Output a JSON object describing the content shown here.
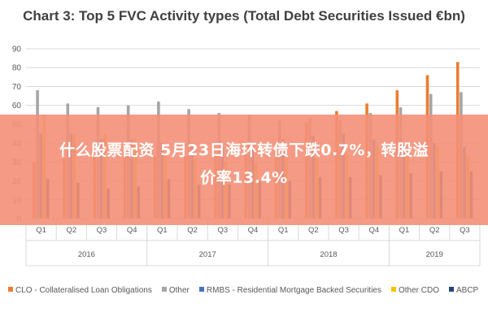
{
  "chart_data": {
    "type": "bar",
    "title": "Chart 3: Top 5 FVC Activity types (Total Debt Securities Issued €bn)",
    "yticks": [
      "0",
      "10",
      "20",
      "30",
      "40",
      "50",
      "60",
      "70",
      "80",
      "90"
    ],
    "ylim": [
      0,
      90
    ],
    "categories": [
      "Q1",
      "Q2",
      "Q3",
      "Q4",
      "Q1",
      "Q2",
      "Q3",
      "Q4",
      "Q1",
      "Q2",
      "Q3",
      "Q4",
      "Q1",
      "Q2",
      "Q3"
    ],
    "year_groups": [
      {
        "label": "2016",
        "count": 4
      },
      {
        "label": "2017",
        "count": 4
      },
      {
        "label": "2018",
        "count": 4
      },
      {
        "label": "2019",
        "count": 3
      }
    ],
    "grid": true,
    "legend_position": "bottom",
    "series": [
      {
        "name": "CLO - Collateralised Loan Obligations",
        "color": "#ED7D31",
        "values": [
          30,
          32,
          33,
          35,
          33,
          33,
          34,
          35,
          36,
          51,
          57,
          61,
          68,
          76,
          83
        ]
      },
      {
        "name": "Other",
        "color": "#A5A5A5",
        "values": [
          68,
          61,
          59,
          60,
          62,
          58,
          56,
          55,
          52,
          53,
          52,
          56,
          59,
          66,
          67
        ]
      },
      {
        "name": "RMBS - Residential Mortgage Backed Securities",
        "color": "#4472C4",
        "values": [
          45,
          45,
          42,
          42,
          40,
          40,
          38,
          38,
          42,
          44,
          45,
          42,
          40,
          40,
          38
        ]
      },
      {
        "name": "Other CDO",
        "color": "#FFC000",
        "values": [
          55,
          45,
          45,
          42,
          35,
          32,
          30,
          30,
          32,
          32,
          34,
          38,
          36,
          38,
          33
        ]
      },
      {
        "name": "ABCP",
        "color": "#264478",
        "values": [
          21,
          19,
          16,
          17,
          21,
          18,
          18,
          20,
          20,
          22,
          22,
          23,
          24,
          25,
          25
        ]
      }
    ]
  },
  "overlay": {
    "line1": "什么股票配资 5月23日海环转债下跌0.7%，转股溢",
    "line2": "价率13.4%"
  }
}
